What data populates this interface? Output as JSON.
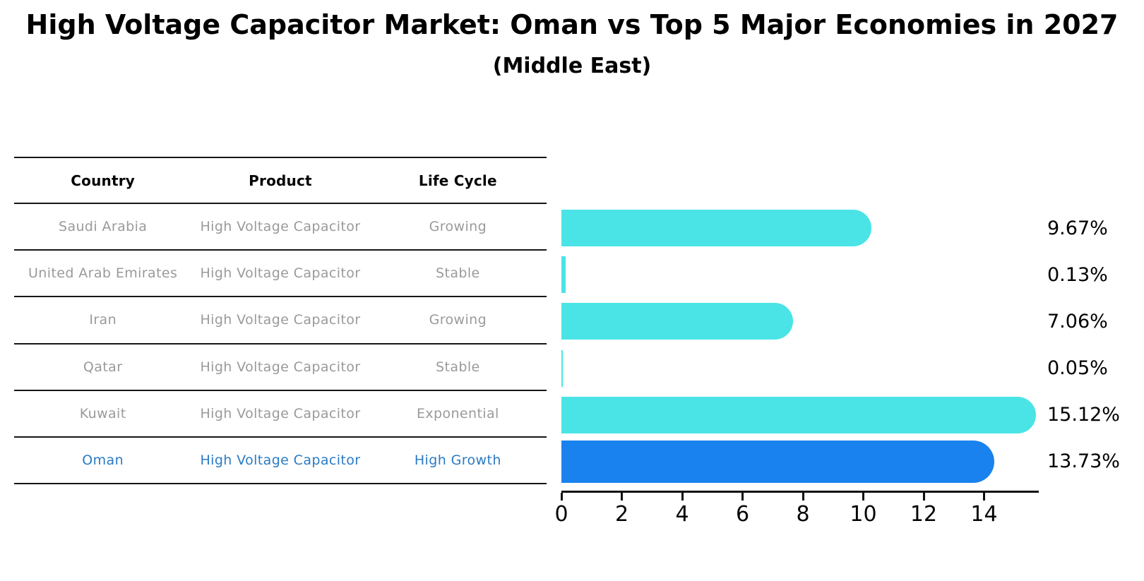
{
  "title": "High Voltage Capacitor Market: Oman vs Top 5 Major Economies in 2027",
  "subtitle": "(Middle East)",
  "table": {
    "headers": [
      "Country",
      "Product",
      "Life Cycle"
    ],
    "rows": [
      {
        "country": "Saudi Arabia",
        "product": "High Voltage Capacitor",
        "life_cycle": "Growing",
        "highlight": false
      },
      {
        "country": "United Arab Emirates",
        "product": "High Voltage Capacitor",
        "life_cycle": "Stable",
        "highlight": false
      },
      {
        "country": "Iran",
        "product": "High Voltage Capacitor",
        "life_cycle": "Growing",
        "highlight": false
      },
      {
        "country": "Qatar",
        "product": "High Voltage Capacitor",
        "life_cycle": "Stable",
        "highlight": false
      },
      {
        "country": "Kuwait",
        "product": "High Voltage Capacitor",
        "life_cycle": "Exponential",
        "highlight": false
      },
      {
        "country": "Oman",
        "product": "High Voltage Capacitor",
        "life_cycle": "High Growth",
        "highlight": true
      }
    ]
  },
  "chart_data": {
    "type": "bar",
    "orientation": "horizontal",
    "categories": [
      "Saudi Arabia",
      "United Arab Emirates",
      "Iran",
      "Qatar",
      "Kuwait",
      "Oman"
    ],
    "values": [
      9.67,
      0.13,
      7.06,
      0.05,
      15.12,
      13.73
    ],
    "value_labels": [
      "9.67%",
      "0.13%",
      "7.06%",
      "0.05%",
      "15.12%",
      "13.73%"
    ],
    "xticks": [
      0,
      2,
      4,
      6,
      8,
      10,
      12,
      14
    ],
    "xlim": [
      0,
      15.8
    ],
    "xlabel": "",
    "ylabel": "",
    "grid": false,
    "legend": false,
    "bar_color": "#4be4e6",
    "highlight_bar_color": "#1a82ee",
    "highlight_index": 5,
    "highlight_text_color": "#2a7bc5"
  }
}
